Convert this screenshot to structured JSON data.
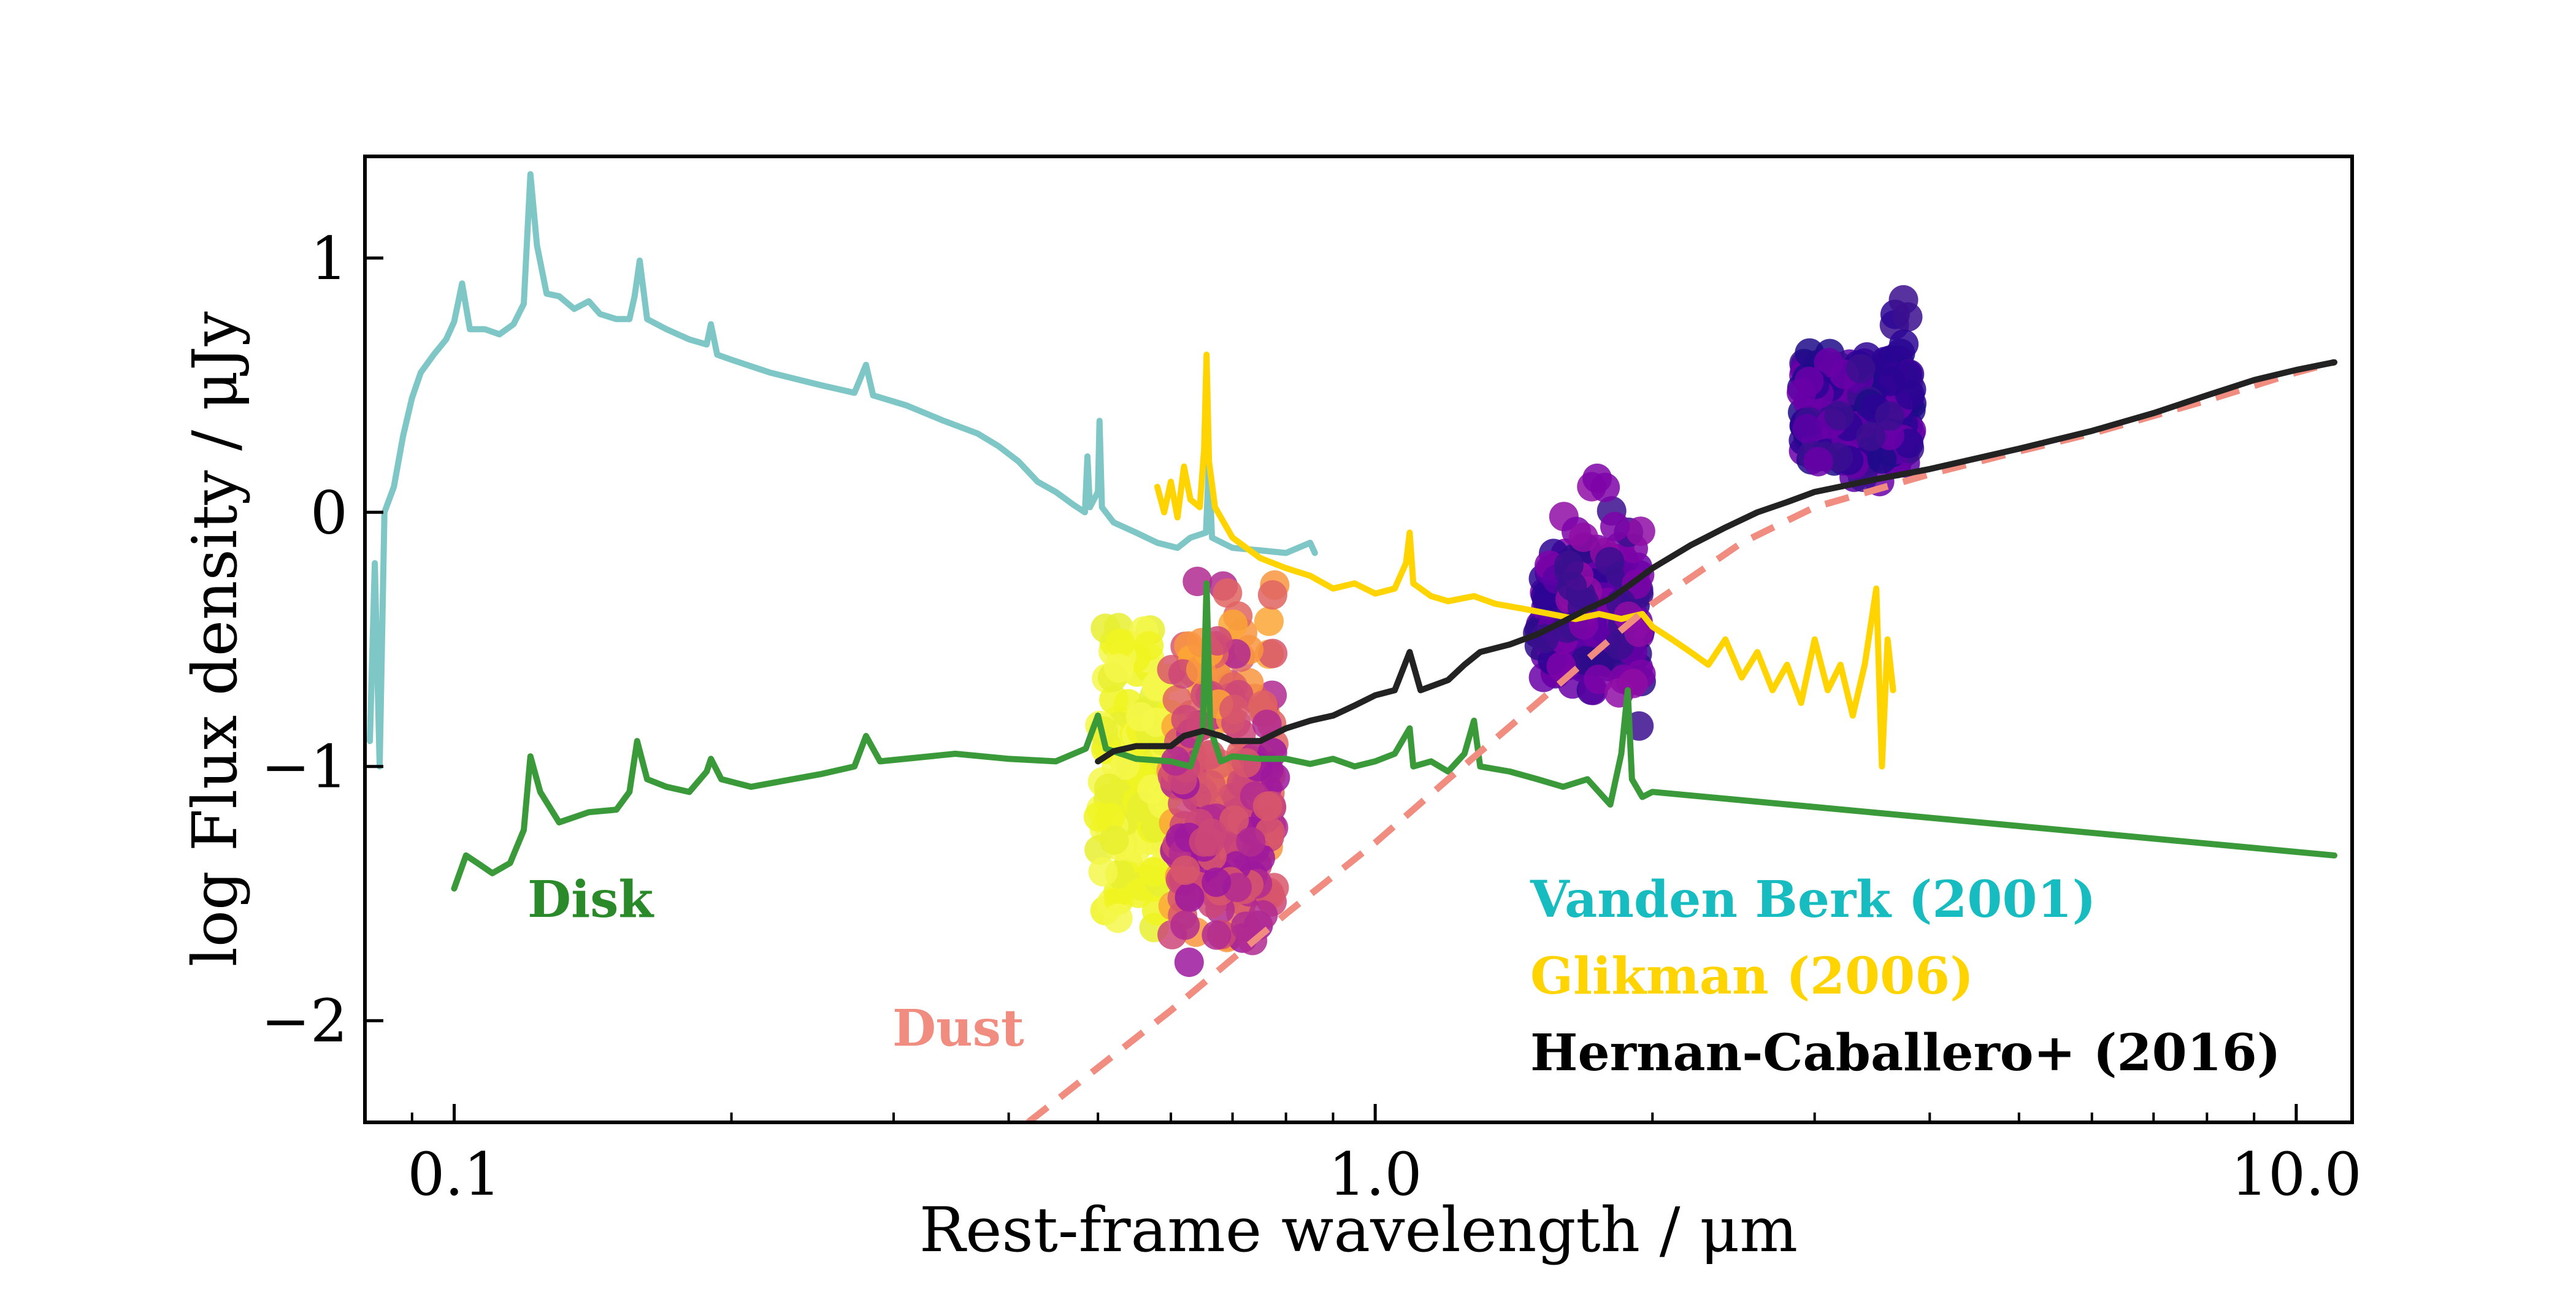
{
  "chart_data": {
    "type": "line",
    "xlabel": "Rest-frame wavelength / μm",
    "ylabel": "log Flux density  / μJy",
    "xscale": "log",
    "xlim": [
      0.08,
      11.5
    ],
    "ylim": [
      -2.4,
      1.4
    ],
    "x_ticks": [
      {
        "v": 0.1,
        "label": "0.1"
      },
      {
        "v": 1.0,
        "label": "1.0"
      },
      {
        "v": 10.0,
        "label": "10.0"
      }
    ],
    "y_ticks": [
      {
        "v": 1,
        "label": "1"
      },
      {
        "v": 0,
        "label": "0"
      },
      {
        "v": -1,
        "label": "−1"
      },
      {
        "v": -2,
        "label": "−2"
      }
    ],
    "grid": false,
    "series": [
      {
        "name": "Vanden Berk (2001)",
        "color": "#7fc6c6",
        "points": [
          [
            0.081,
            -0.9
          ],
          [
            0.082,
            -0.2
          ],
          [
            0.083,
            -1.0
          ],
          [
            0.084,
            0.0
          ],
          [
            0.086,
            0.1
          ],
          [
            0.088,
            0.3
          ],
          [
            0.09,
            0.45
          ],
          [
            0.092,
            0.55
          ],
          [
            0.095,
            0.62
          ],
          [
            0.098,
            0.68
          ],
          [
            0.1,
            0.75
          ],
          [
            0.102,
            0.9
          ],
          [
            0.104,
            0.72
          ],
          [
            0.108,
            0.72
          ],
          [
            0.112,
            0.7
          ],
          [
            0.116,
            0.74
          ],
          [
            0.119,
            0.82
          ],
          [
            0.121,
            1.33
          ],
          [
            0.123,
            1.05
          ],
          [
            0.126,
            0.86
          ],
          [
            0.13,
            0.85
          ],
          [
            0.135,
            0.8
          ],
          [
            0.14,
            0.83
          ],
          [
            0.144,
            0.78
          ],
          [
            0.15,
            0.76
          ],
          [
            0.155,
            0.76
          ],
          [
            0.157,
            0.85
          ],
          [
            0.159,
            0.99
          ],
          [
            0.162,
            0.76
          ],
          [
            0.17,
            0.72
          ],
          [
            0.18,
            0.68
          ],
          [
            0.188,
            0.66
          ],
          [
            0.19,
            0.74
          ],
          [
            0.193,
            0.62
          ],
          [
            0.2,
            0.6
          ],
          [
            0.22,
            0.55
          ],
          [
            0.25,
            0.5
          ],
          [
            0.272,
            0.47
          ],
          [
            0.28,
            0.58
          ],
          [
            0.285,
            0.46
          ],
          [
            0.31,
            0.42
          ],
          [
            0.34,
            0.36
          ],
          [
            0.37,
            0.31
          ],
          [
            0.39,
            0.26
          ],
          [
            0.41,
            0.2
          ],
          [
            0.43,
            0.12
          ],
          [
            0.45,
            0.08
          ],
          [
            0.47,
            0.03
          ],
          [
            0.484,
            0.0
          ],
          [
            0.487,
            0.22
          ],
          [
            0.49,
            0.02
          ],
          [
            0.5,
            0.08
          ],
          [
            0.502,
            0.36
          ],
          [
            0.505,
            0.02
          ],
          [
            0.52,
            -0.04
          ],
          [
            0.55,
            -0.08
          ],
          [
            0.58,
            -0.12
          ],
          [
            0.61,
            -0.14
          ],
          [
            0.63,
            -0.1
          ],
          [
            0.655,
            -0.08
          ],
          [
            0.66,
            0.2
          ],
          [
            0.665,
            -0.1
          ],
          [
            0.7,
            -0.14
          ],
          [
            0.75,
            -0.15
          ],
          [
            0.8,
            -0.16
          ],
          [
            0.85,
            -0.12
          ],
          [
            0.86,
            -0.16
          ]
        ]
      },
      {
        "name": "Glikman (2006)",
        "color": "#ffd400",
        "points": [
          [
            0.58,
            0.1
          ],
          [
            0.59,
            0.0
          ],
          [
            0.6,
            0.12
          ],
          [
            0.61,
            -0.02
          ],
          [
            0.62,
            0.18
          ],
          [
            0.63,
            0.05
          ],
          [
            0.645,
            0.02
          ],
          [
            0.652,
            0.25
          ],
          [
            0.656,
            0.62
          ],
          [
            0.66,
            0.2
          ],
          [
            0.67,
            0.02
          ],
          [
            0.7,
            -0.1
          ],
          [
            0.75,
            -0.18
          ],
          [
            0.8,
            -0.22
          ],
          [
            0.85,
            -0.25
          ],
          [
            0.9,
            -0.3
          ],
          [
            0.95,
            -0.28
          ],
          [
            1.0,
            -0.32
          ],
          [
            1.05,
            -0.3
          ],
          [
            1.08,
            -0.2
          ],
          [
            1.09,
            -0.08
          ],
          [
            1.1,
            -0.28
          ],
          [
            1.15,
            -0.33
          ],
          [
            1.2,
            -0.35
          ],
          [
            1.28,
            -0.33
          ],
          [
            1.35,
            -0.36
          ],
          [
            1.45,
            -0.38
          ],
          [
            1.55,
            -0.4
          ],
          [
            1.65,
            -0.42
          ],
          [
            1.75,
            -0.4
          ],
          [
            1.85,
            -0.42
          ],
          [
            1.95,
            -0.4
          ],
          [
            2.0,
            -0.45
          ],
          [
            2.1,
            -0.5
          ],
          [
            2.2,
            -0.55
          ],
          [
            2.3,
            -0.6
          ],
          [
            2.4,
            -0.5
          ],
          [
            2.5,
            -0.65
          ],
          [
            2.6,
            -0.55
          ],
          [
            2.7,
            -0.7
          ],
          [
            2.8,
            -0.6
          ],
          [
            2.9,
            -0.75
          ],
          [
            3.0,
            -0.5
          ],
          [
            3.1,
            -0.7
          ],
          [
            3.2,
            -0.6
          ],
          [
            3.3,
            -0.8
          ],
          [
            3.4,
            -0.6
          ],
          [
            3.5,
            -0.3
          ],
          [
            3.55,
            -1.0
          ],
          [
            3.6,
            -0.5
          ],
          [
            3.65,
            -0.7
          ]
        ]
      },
      {
        "name": "Hernan-Caballero+ (2016)",
        "color": "#222222",
        "points": [
          [
            0.5,
            -0.98
          ],
          [
            0.52,
            -0.94
          ],
          [
            0.55,
            -0.92
          ],
          [
            0.6,
            -0.92
          ],
          [
            0.62,
            -0.88
          ],
          [
            0.65,
            -0.86
          ],
          [
            0.68,
            -0.88
          ],
          [
            0.7,
            -0.9
          ],
          [
            0.75,
            -0.9
          ],
          [
            0.8,
            -0.85
          ],
          [
            0.85,
            -0.82
          ],
          [
            0.9,
            -0.8
          ],
          [
            0.95,
            -0.76
          ],
          [
            1.0,
            -0.72
          ],
          [
            1.05,
            -0.7
          ],
          [
            1.09,
            -0.55
          ],
          [
            1.12,
            -0.7
          ],
          [
            1.2,
            -0.66
          ],
          [
            1.25,
            -0.6
          ],
          [
            1.3,
            -0.55
          ],
          [
            1.4,
            -0.52
          ],
          [
            1.5,
            -0.48
          ],
          [
            1.6,
            -0.43
          ],
          [
            1.7,
            -0.38
          ],
          [
            1.8,
            -0.34
          ],
          [
            1.9,
            -0.28
          ],
          [
            2.0,
            -0.22
          ],
          [
            2.2,
            -0.13
          ],
          [
            2.4,
            -0.06
          ],
          [
            2.6,
            0.0
          ],
          [
            2.8,
            0.04
          ],
          [
            3.0,
            0.08
          ],
          [
            3.5,
            0.13
          ],
          [
            4.0,
            0.17
          ],
          [
            5.0,
            0.25
          ],
          [
            6.0,
            0.32
          ],
          [
            7.0,
            0.39
          ],
          [
            8.0,
            0.46
          ],
          [
            9.0,
            0.52
          ],
          [
            10.0,
            0.56
          ],
          [
            11.0,
            0.59
          ]
        ]
      },
      {
        "name": "Disk",
        "color": "#3a9a3a",
        "points": [
          [
            0.1,
            -1.48
          ],
          [
            0.103,
            -1.35
          ],
          [
            0.106,
            -1.38
          ],
          [
            0.11,
            -1.42
          ],
          [
            0.115,
            -1.38
          ],
          [
            0.119,
            -1.25
          ],
          [
            0.121,
            -0.96
          ],
          [
            0.124,
            -1.1
          ],
          [
            0.13,
            -1.22
          ],
          [
            0.14,
            -1.18
          ],
          [
            0.15,
            -1.17
          ],
          [
            0.155,
            -1.1
          ],
          [
            0.158,
            -0.9
          ],
          [
            0.162,
            -1.05
          ],
          [
            0.17,
            -1.08
          ],
          [
            0.18,
            -1.1
          ],
          [
            0.188,
            -1.02
          ],
          [
            0.19,
            -0.97
          ],
          [
            0.195,
            -1.05
          ],
          [
            0.21,
            -1.08
          ],
          [
            0.25,
            -1.03
          ],
          [
            0.272,
            -1.0
          ],
          [
            0.28,
            -0.88
          ],
          [
            0.29,
            -0.98
          ],
          [
            0.35,
            -0.95
          ],
          [
            0.4,
            -0.97
          ],
          [
            0.45,
            -0.98
          ],
          [
            0.485,
            -0.93
          ],
          [
            0.5,
            -0.8
          ],
          [
            0.51,
            -0.93
          ],
          [
            0.55,
            -0.97
          ],
          [
            0.6,
            -0.98
          ],
          [
            0.63,
            -1.0
          ],
          [
            0.65,
            -0.85
          ],
          [
            0.656,
            -0.28
          ],
          [
            0.662,
            -0.85
          ],
          [
            0.68,
            -0.98
          ],
          [
            0.7,
            -0.96
          ],
          [
            0.75,
            -0.97
          ],
          [
            0.8,
            -0.97
          ],
          [
            0.85,
            -0.99
          ],
          [
            0.9,
            -0.97
          ],
          [
            0.95,
            -1.0
          ],
          [
            1.0,
            -0.98
          ],
          [
            1.05,
            -0.95
          ],
          [
            1.09,
            -0.85
          ],
          [
            1.1,
            -1.0
          ],
          [
            1.15,
            -0.98
          ],
          [
            1.2,
            -1.02
          ],
          [
            1.25,
            -0.95
          ],
          [
            1.28,
            -0.82
          ],
          [
            1.3,
            -1.0
          ],
          [
            1.4,
            -1.02
          ],
          [
            1.5,
            -1.05
          ],
          [
            1.6,
            -1.08
          ],
          [
            1.7,
            -1.05
          ],
          [
            1.8,
            -1.15
          ],
          [
            1.85,
            -0.95
          ],
          [
            1.88,
            -0.7
          ],
          [
            1.9,
            -1.05
          ],
          [
            1.95,
            -1.12
          ],
          [
            2.0,
            -1.1
          ],
          [
            11.0,
            -1.35
          ]
        ]
      },
      {
        "name": "Dust",
        "color": "#f08c80",
        "dashed": true,
        "points": [
          [
            0.42,
            -2.4
          ],
          [
            0.6,
            -1.96
          ],
          [
            0.8,
            -1.58
          ],
          [
            1.0,
            -1.3
          ],
          [
            1.2,
            -1.05
          ],
          [
            1.5,
            -0.75
          ],
          [
            1.8,
            -0.5
          ],
          [
            2.0,
            -0.36
          ],
          [
            2.5,
            -0.12
          ],
          [
            3.0,
            0.02
          ],
          [
            4.0,
            0.15
          ],
          [
            5.0,
            0.24
          ],
          [
            6.0,
            0.31
          ],
          [
            8.0,
            0.44
          ],
          [
            10.0,
            0.55
          ],
          [
            11.0,
            0.59
          ]
        ]
      }
    ],
    "scatter_clusters": [
      {
        "x_range": [
          0.5,
          0.6
        ],
        "y_range": [
          -1.75,
          -0.3
        ],
        "count": 140,
        "colors": [
          "#f0f521",
          "#e8f030",
          "#f5f74a"
        ]
      },
      {
        "x_range": [
          0.6,
          0.78
        ],
        "y_range": [
          -1.78,
          -0.2
        ],
        "count": 150,
        "colors": [
          "#f89540",
          "#fca636",
          "#e16462",
          "#cc4778",
          "#b12a90",
          "#d8576b"
        ]
      },
      {
        "x_range": [
          0.6,
          0.78
        ],
        "y_range": [
          -1.8,
          -0.8
        ],
        "count": 100,
        "colors": [
          "#b12a90",
          "#cc4778",
          "#9c179e",
          "#d8576b"
        ]
      },
      {
        "x_range": [
          1.5,
          1.95
        ],
        "y_range": [
          -0.72,
          -0.1
        ],
        "count": 180,
        "colors": [
          "#3b0f8f",
          "#2c0594",
          "#5c01a6",
          "#6a00a8",
          "#7e03a8",
          "#2d0c8a"
        ]
      },
      {
        "x_range": [
          1.6,
          1.95
        ],
        "y_range": [
          -1.0,
          0.25
        ],
        "count": 40,
        "colors": [
          "#8f0da4",
          "#7e03a8",
          "#3b0f8f"
        ]
      },
      {
        "x_range": [
          2.9,
          3.85
        ],
        "y_range": [
          0.08,
          0.66
        ],
        "count": 220,
        "colors": [
          "#1f0c8a",
          "#2c0594",
          "#3b0f8f",
          "#5c01a6",
          "#6a00a8"
        ]
      },
      {
        "x_range": [
          3.6,
          3.8
        ],
        "y_range": [
          0.6,
          0.9
        ],
        "count": 5,
        "colors": [
          "#3b0f8f",
          "#2c0594"
        ]
      }
    ],
    "annotations": [
      {
        "text": "Disk",
        "color": "#2a8a2a"
      },
      {
        "text": "Dust",
        "color": "#f08c80"
      },
      {
        "text": "Vanden Berk (2001)",
        "color": "#17bcc1"
      },
      {
        "text": "Glikman (2006)",
        "color": "#ffd400"
      },
      {
        "text": "Hernan-Caballero+ (2016)",
        "color": "#000000"
      }
    ]
  }
}
